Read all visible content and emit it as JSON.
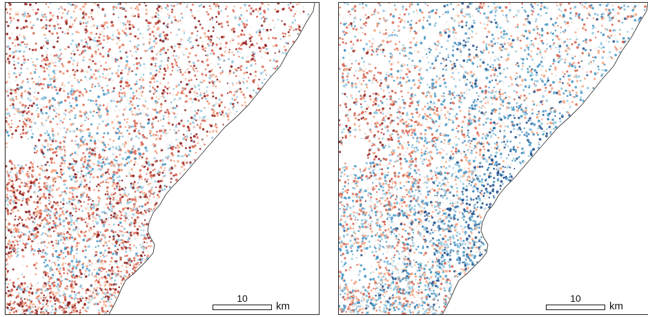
{
  "panels": [
    {
      "id": "left",
      "pattern": "uplift-dominant",
      "scale_bar": {
        "value": "10",
        "unit": "km"
      }
    },
    {
      "id": "right",
      "pattern": "subsidence-dominant",
      "scale_bar": {
        "value": "10",
        "unit": "km"
      }
    }
  ],
  "colors": {
    "positive_dark": "#8b1a1a",
    "positive": "#d6604d",
    "positive_light": "#f4a582",
    "neutral": "#f2efe9",
    "negative_light": "#92c5de",
    "negative": "#4393c3",
    "negative_dark": "#1f4e8a",
    "coastline": "#333333",
    "sea": "#ffffff"
  }
}
